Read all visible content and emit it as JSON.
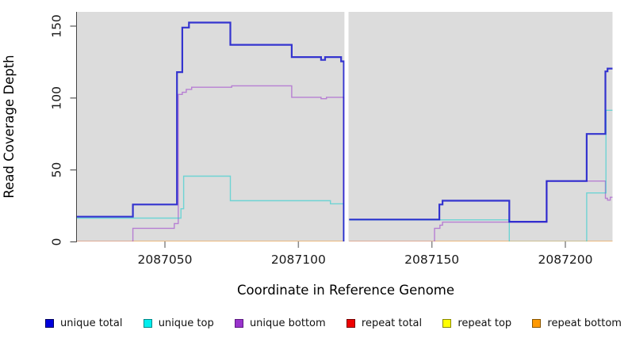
{
  "chart_data": {
    "type": "line",
    "subtype": "step-coverage",
    "title": "",
    "xlabel": "Coordinate in Reference Genome",
    "ylabel": "Read Coverage Depth",
    "x_ticks": [
      2087050,
      2087100,
      2087150,
      2087200
    ],
    "y_ticks": [
      0,
      50,
      100,
      150
    ],
    "xlim": [
      2087017,
      2087218
    ],
    "ylim": [
      0,
      160
    ],
    "plot_background": "#dcdcdc",
    "grid": false,
    "legend_position": "bottom",
    "gap": {
      "x_start": 2087117,
      "x_end": 2087119,
      "fill": "#ffffff",
      "note": "white no-data band"
    },
    "series": [
      {
        "name": "unique total",
        "color": "#1616cc",
        "swatch": "#0000dd",
        "swatch_border": "#00005e",
        "opacity": 0.85,
        "width": 2.2,
        "z": 6,
        "segments": [
          [
            [
              2087017,
              17.5
            ],
            [
              2087038,
              26
            ],
            [
              2087054.5,
              118
            ],
            [
              2087056.5,
              149
            ],
            [
              2087059,
              152.5
            ],
            [
              2087074.5,
              137
            ],
            [
              2087097.5,
              128.5
            ],
            [
              2087108.5,
              126.5
            ],
            [
              2087110,
              128.5
            ],
            [
              2087116,
              125.5
            ],
            [
              2087117,
              0
            ]
          ],
          [
            [
              2087119,
              15.5
            ],
            [
              2087152.8,
              26
            ],
            [
              2087154,
              28.6
            ],
            [
              2087179,
              14
            ],
            [
              2087193,
              42.3
            ],
            [
              2087208,
              75
            ],
            [
              2087215,
              118.5
            ],
            [
              2087215.8,
              120.5
            ],
            [
              2087217.7,
              120.5
            ]
          ]
        ]
      },
      {
        "name": "unique top",
        "color": "#00cccc",
        "swatch": "#00eeee",
        "swatch_border": "#008888",
        "opacity": 0.5,
        "width": 1.4,
        "z": 5,
        "segments": [
          [
            [
              2087017,
              16.5
            ],
            [
              2087056,
              23
            ],
            [
              2087057,
              45.7
            ],
            [
              2087074.5,
              28.6
            ],
            [
              2087112,
              26.5
            ],
            [
              2087117,
              0
            ]
          ],
          [
            [
              2087119,
              15.3
            ],
            [
              2087179,
              0
            ],
            [
              2087208,
              34
            ],
            [
              2087215.2,
              91.5
            ],
            [
              2087217.7,
              91.5
            ]
          ]
        ]
      },
      {
        "name": "unique bottom",
        "color": "#9933cc",
        "swatch": "#9933cc",
        "swatch_border": "#5c1a80",
        "opacity": 0.55,
        "width": 1.4,
        "z": 4,
        "segments": [
          [
            [
              2087017,
              0
            ],
            [
              2087038,
              9.4
            ],
            [
              2087053.5,
              12.7
            ],
            [
              2087055,
              102.5
            ],
            [
              2087056.5,
              104
            ],
            [
              2087058,
              106
            ],
            [
              2087060,
              107.5
            ],
            [
              2087075,
              108.5
            ],
            [
              2087097.5,
              100.5
            ],
            [
              2087108.5,
              99.5
            ],
            [
              2087110.5,
              100.5
            ],
            [
              2087117,
              0
            ]
          ],
          [
            [
              2087119,
              0
            ],
            [
              2087151,
              9.4
            ],
            [
              2087153,
              11.6
            ],
            [
              2087154,
              13.7
            ],
            [
              2087193,
              42.3
            ],
            [
              2087215,
              30.3
            ],
            [
              2087215.8,
              29
            ],
            [
              2087216.8,
              31
            ],
            [
              2087217.7,
              31
            ]
          ]
        ]
      },
      {
        "name": "repeat total",
        "color": "#dd0000",
        "swatch": "#ee0000",
        "swatch_border": "#770000",
        "opacity": 1,
        "width": 1.2,
        "z": 1,
        "segments": [
          [
            [
              2087017,
              0
            ],
            [
              2087117,
              0
            ]
          ],
          [
            [
              2087119,
              0
            ],
            [
              2087217.7,
              0
            ]
          ]
        ]
      },
      {
        "name": "repeat top",
        "color": "#eeee00",
        "swatch": "#ffff00",
        "swatch_border": "#888800",
        "opacity": 1,
        "width": 1.2,
        "z": 2,
        "segments": [
          [
            [
              2087017,
              0
            ],
            [
              2087117,
              0
            ]
          ],
          [
            [
              2087119,
              0
            ],
            [
              2087217.7,
              0
            ]
          ]
        ]
      },
      {
        "name": "repeat bottom",
        "color": "#ff8800",
        "swatch": "#ff9900",
        "swatch_border": "#885500",
        "opacity": 1,
        "width": 1.8,
        "z": 3,
        "segments": [
          [
            [
              2087017,
              0
            ],
            [
              2087117,
              0
            ]
          ],
          [
            [
              2087119,
              0
            ],
            [
              2087217.7,
              0
            ]
          ]
        ]
      }
    ],
    "legend": [
      {
        "label": "unique total"
      },
      {
        "label": "unique top"
      },
      {
        "label": "unique bottom"
      },
      {
        "label": "repeat total"
      },
      {
        "label": "repeat top"
      },
      {
        "label": "repeat bottom"
      }
    ]
  }
}
